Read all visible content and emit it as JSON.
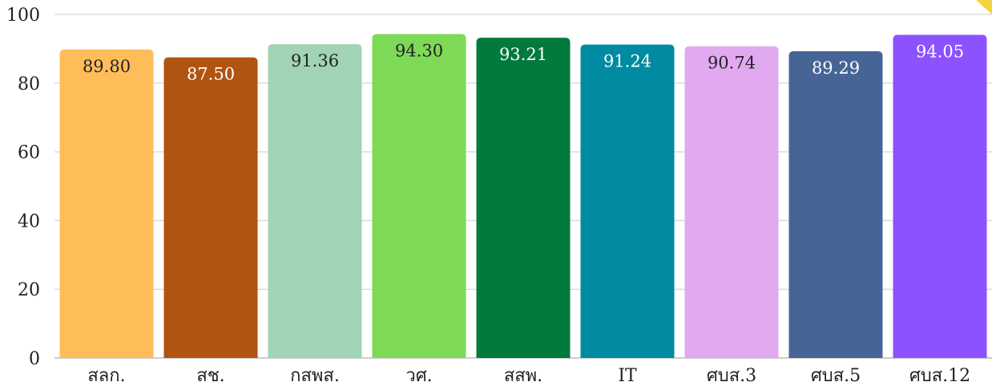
{
  "chart_data": {
    "type": "bar",
    "categories": [
      "สลก.",
      "สช.",
      "กสพส.",
      "วศ.",
      "สสพ.",
      "IT",
      "ศบส.3",
      "ศบส.5",
      "ศบส.12"
    ],
    "values": [
      89.8,
      87.5,
      91.36,
      94.3,
      93.21,
      91.24,
      90.74,
      89.29,
      94.05
    ],
    "value_labels": [
      "89.80",
      "87.50",
      "91.36",
      "94.30",
      "93.21",
      "91.24",
      "90.74",
      "89.29",
      "94.05"
    ],
    "colors": [
      "#ffbd59",
      "#b05412",
      "#a0d4b4",
      "#7ed957",
      "#007a3d",
      "#008ba3",
      "#e2a9f1",
      "#466596",
      "#8c52ff"
    ],
    "label_colors": [
      "#222222",
      "#ffffff",
      "#222222",
      "#222222",
      "#ffffff",
      "#ffffff",
      "#222222",
      "#ffffff",
      "#ffffff"
    ],
    "ylim": [
      0,
      100
    ],
    "yticks": [
      0,
      20,
      40,
      60,
      80,
      100
    ],
    "grid": true,
    "legend": "none",
    "title": "",
    "xlabel": "",
    "ylabel": ""
  }
}
